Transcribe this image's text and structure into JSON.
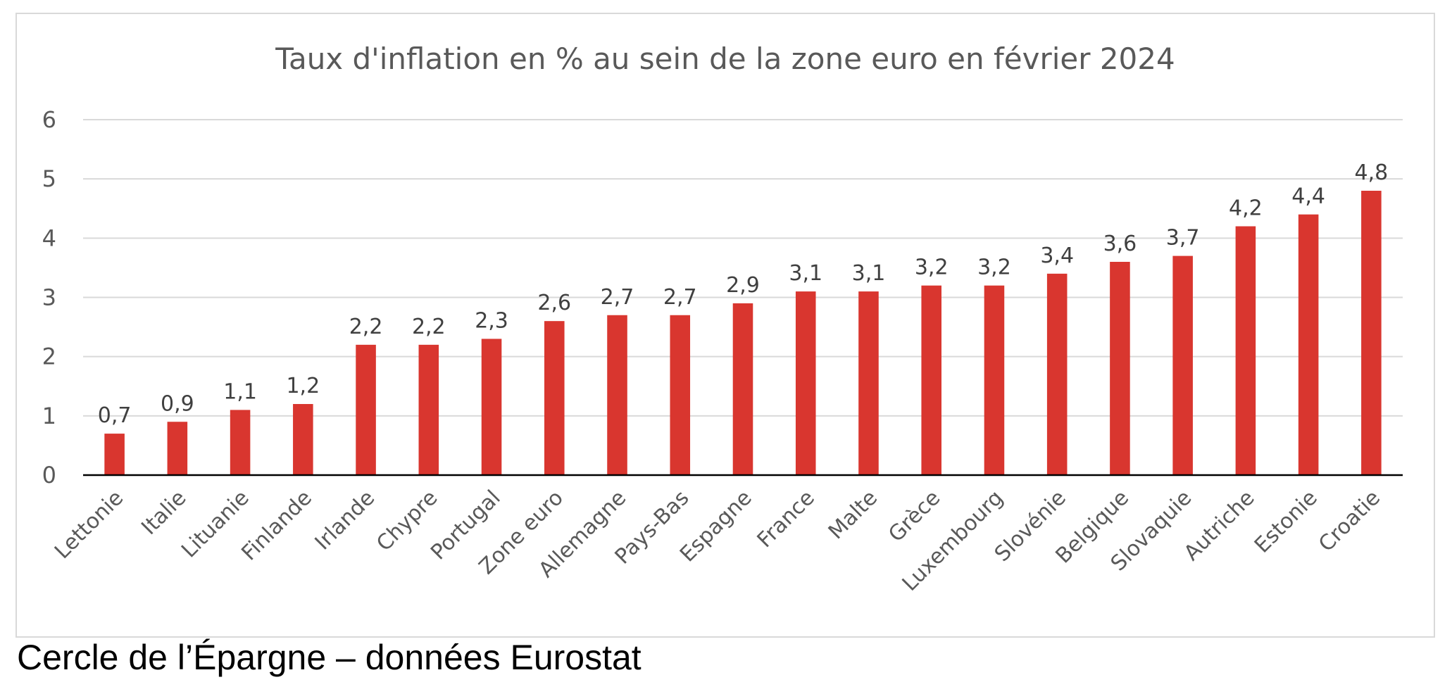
{
  "chart_data": {
    "type": "bar",
    "title": "Taux d'inflation en % au sein de la zone euro en février 2024",
    "xlabel": "",
    "ylabel": "",
    "ylim": [
      0,
      6
    ],
    "yticks": [
      "0",
      "1",
      "2",
      "3",
      "4",
      "5",
      "6"
    ],
    "grid": true,
    "legend": "none",
    "bar_color": "#d9362f",
    "categories": [
      "Lettonie",
      "Italie",
      "Lituanie",
      "Finlande",
      "Irlande",
      "Chypre",
      "Portugal",
      "Zone euro",
      "Allemagne",
      "Pays-Bas",
      "Espagne",
      "France",
      "Malte",
      "Grèce",
      "Luxembourg",
      "Slovénie",
      "Belgique",
      "Slovaquie",
      "Autriche",
      "Estonie",
      "Croatie"
    ],
    "values": [
      0.7,
      0.9,
      1.1,
      1.2,
      2.2,
      2.2,
      2.3,
      2.6,
      2.7,
      2.7,
      2.9,
      3.1,
      3.1,
      3.2,
      3.2,
      3.4,
      3.6,
      3.7,
      4.2,
      4.4,
      4.8
    ],
    "data_labels": [
      "0,7",
      "0,9",
      "1,1",
      "1,2",
      "2,2",
      "2,2",
      "2,3",
      "2,6",
      "2,7",
      "2,7",
      "2,9",
      "3,1",
      "3,1",
      "3,2",
      "3,2",
      "3,4",
      "3,6",
      "3,7",
      "4,2",
      "4,4",
      "4,8"
    ]
  },
  "caption": "Cercle de l’Épargne – données Eurostat"
}
